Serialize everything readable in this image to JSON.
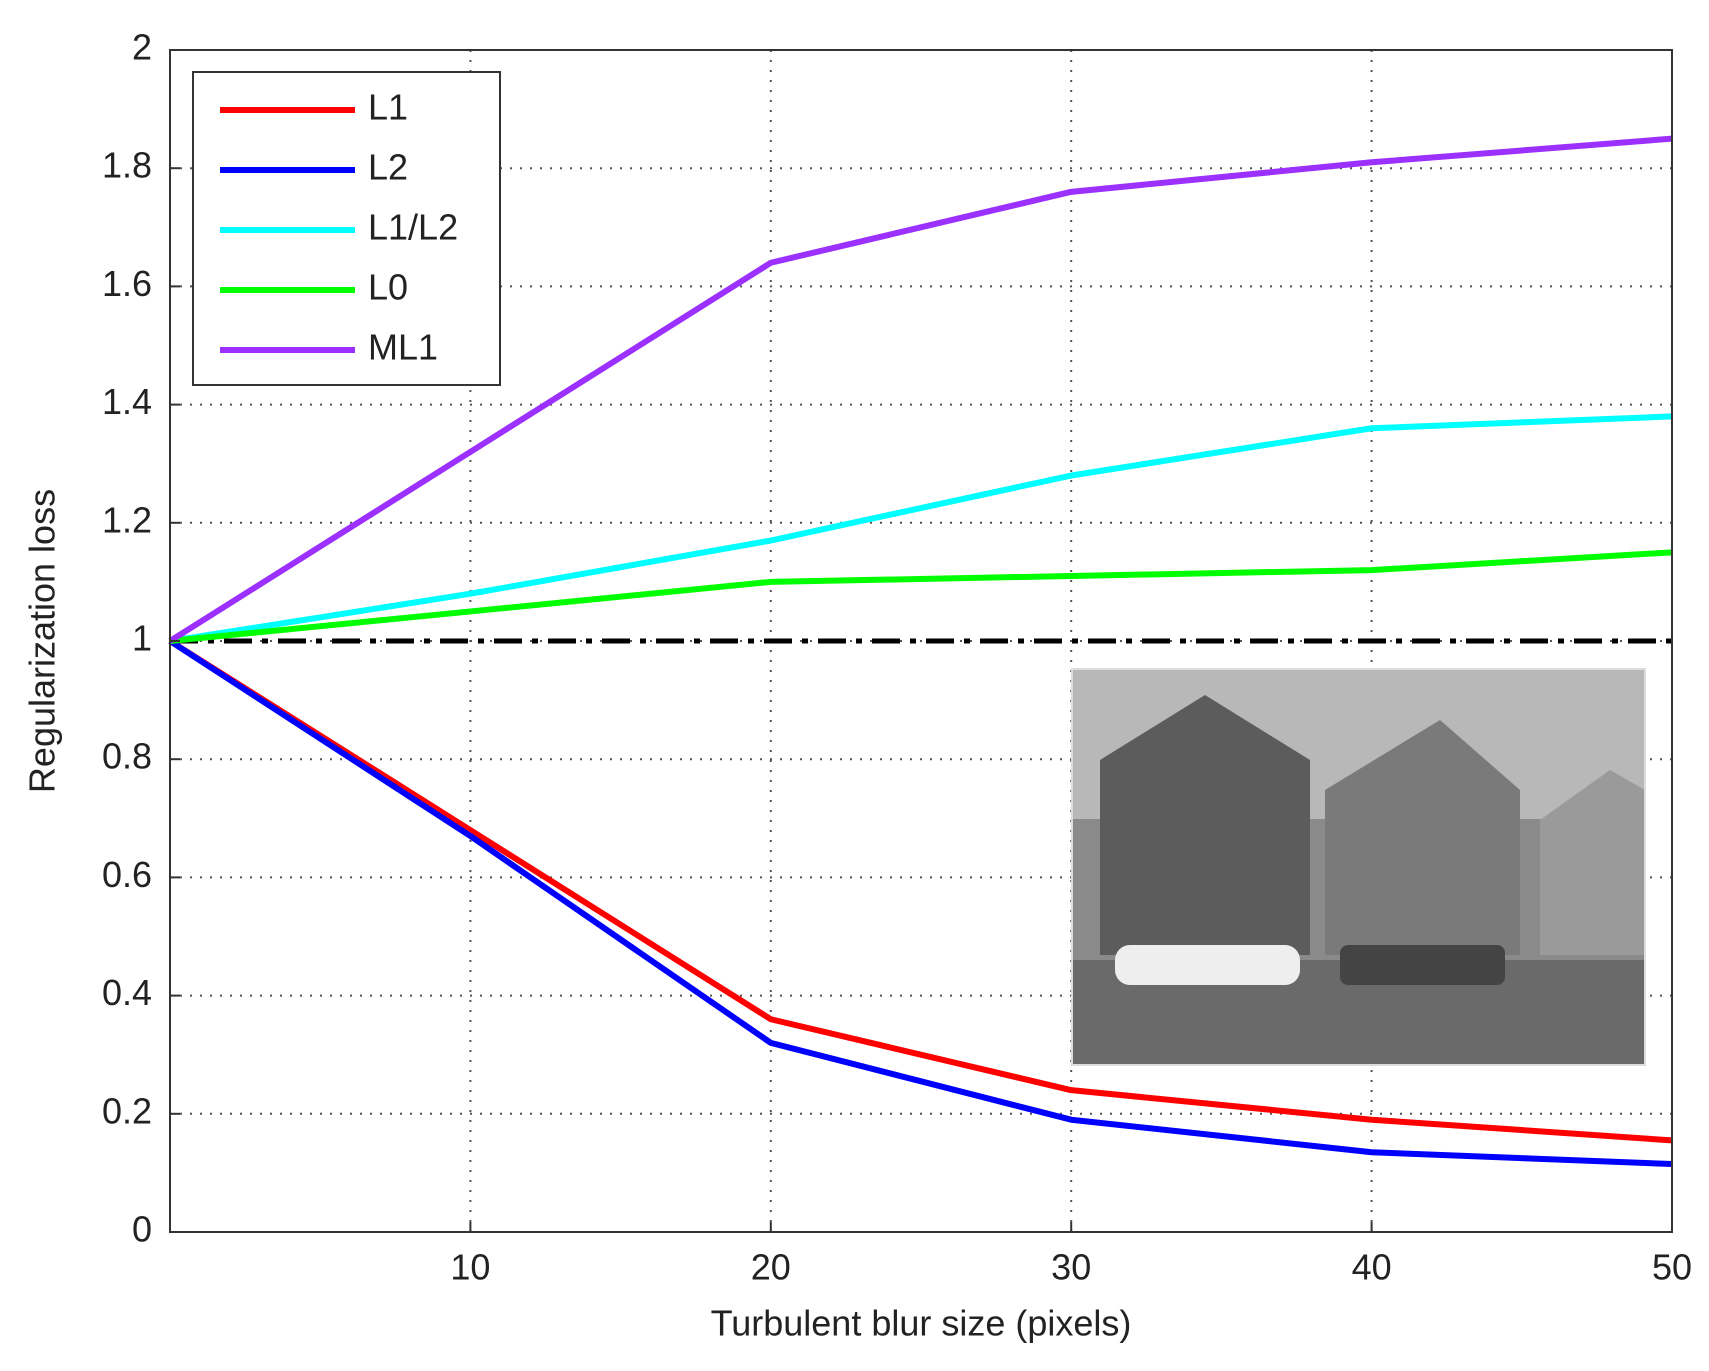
{
  "chart_data": {
    "type": "line",
    "xlabel": "Turbulent blur size (pixels)",
    "ylabel": "Regularization loss",
    "x": [
      0,
      10,
      20,
      30,
      40,
      50
    ],
    "series": [
      {
        "name": "L1",
        "color": "#ff0000",
        "values": [
          1,
          0.68,
          0.36,
          0.24,
          0.19,
          0.155
        ]
      },
      {
        "name": "L2",
        "color": "#0000ff",
        "values": [
          1,
          0.67,
          0.32,
          0.19,
          0.135,
          0.115
        ]
      },
      {
        "name": "L1/L2",
        "color": "#00ffff",
        "values": [
          1,
          1.08,
          1.17,
          1.28,
          1.36,
          1.38
        ]
      },
      {
        "name": "L0",
        "color": "#00ff00",
        "values": [
          1,
          1.05,
          1.1,
          1.11,
          1.12,
          1.15
        ]
      },
      {
        "name": "ML1",
        "color": "#9b30ff",
        "values": [
          1,
          1.32,
          1.64,
          1.76,
          1.81,
          1.85
        ]
      }
    ],
    "reference_line": 1,
    "xlim": [
      0,
      50
    ],
    "xticks": [
      10,
      20,
      30,
      40,
      50
    ],
    "ylim": [
      0,
      2
    ],
    "yticks": [
      0,
      0.2,
      0.4,
      0.6,
      0.8,
      1,
      1.2,
      1.4,
      1.6,
      1.8,
      2
    ],
    "grid": true,
    "legend": "upper left"
  }
}
